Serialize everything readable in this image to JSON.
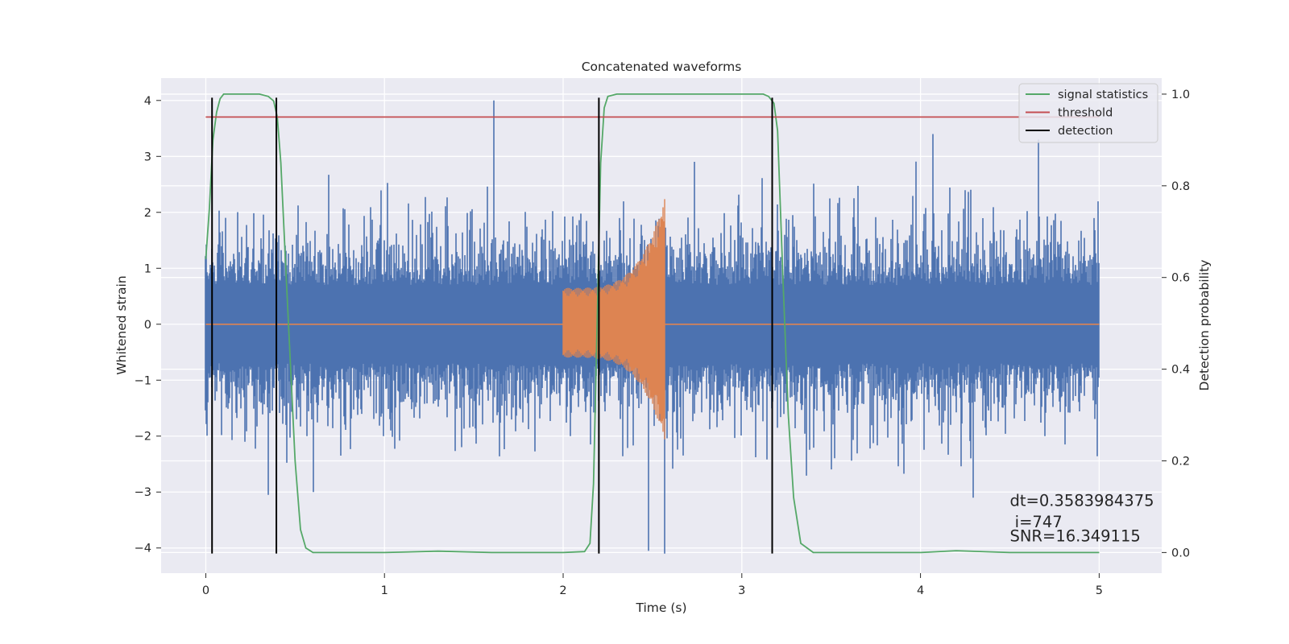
{
  "chart_data": {
    "type": "line",
    "title": "Concatenated waveforms",
    "xlabel": "Time (s)",
    "ylabel": "Whitened strain",
    "ylabel_right": "Detection probability",
    "xlim": [
      -0.25,
      5.35
    ],
    "ylim": [
      -4.45,
      4.4
    ],
    "ylim_right": [
      -0.045,
      1.035
    ],
    "x_ticks": [
      0,
      1,
      2,
      3,
      4,
      5
    ],
    "x_tick_labels": [
      "0",
      "1",
      "2",
      "3",
      "4",
      "5"
    ],
    "y_ticks": [
      -4,
      -3,
      -2,
      -1,
      0,
      1,
      2,
      3,
      4
    ],
    "y_tick_labels": [
      "−4",
      "−3",
      "−2",
      "−1",
      "0",
      "1",
      "2",
      "3",
      "4"
    ],
    "y2_ticks": [
      0.0,
      0.2,
      0.4,
      0.6,
      0.8,
      1.0
    ],
    "y2_tick_labels": [
      "0.0",
      "0.2",
      "0.4",
      "0.6",
      "0.8",
      "1.0"
    ],
    "grid": true,
    "legend_position": "top-right",
    "noise": {
      "x_range": [
        0,
        5
      ],
      "typical_peak": 1.6,
      "notable_peaks": [
        {
          "x": 1.61,
          "y": 4.0
        },
        {
          "x": 2.48,
          "y": -4.05
        },
        {
          "x": 2.57,
          "y": -4.1
        },
        {
          "x": 4.07,
          "y": 3.4
        },
        {
          "x": 4.66,
          "y": 3.3
        },
        {
          "x": 0.6,
          "y": -3.0
        },
        {
          "x": 0.35,
          "y": -3.05
        }
      ],
      "color": "#4c72b0"
    },
    "injection": {
      "x_start": 2.0,
      "x_merger": 2.57,
      "amplitude_start": 0.65,
      "amplitude_peak": 2.25,
      "color": "#dd8452"
    },
    "series": [
      {
        "name": "signal statistics",
        "axis": "right",
        "color": "#55a868",
        "x": [
          0.0,
          0.02,
          0.04,
          0.06,
          0.08,
          0.1,
          0.15,
          0.3,
          0.35,
          0.38,
          0.4,
          0.42,
          0.45,
          0.5,
          0.53,
          0.56,
          0.6,
          1.0,
          1.3,
          1.6,
          2.0,
          2.12,
          2.15,
          2.17,
          2.19,
          2.21,
          2.23,
          2.25,
          2.3,
          2.4,
          3.0,
          3.12,
          3.15,
          3.18,
          3.2,
          3.23,
          3.26,
          3.29,
          3.33,
          3.4,
          4.0,
          4.2,
          4.5,
          5.0
        ],
        "y": [
          0.64,
          0.75,
          0.9,
          0.96,
          0.99,
          1.0,
          1.0,
          1.0,
          0.995,
          0.985,
          0.95,
          0.85,
          0.6,
          0.2,
          0.05,
          0.01,
          0.0,
          0.0,
          0.003,
          0.0,
          0.0,
          0.002,
          0.02,
          0.15,
          0.5,
          0.85,
          0.97,
          0.995,
          1.0,
          1.0,
          1.0,
          1.0,
          0.995,
          0.98,
          0.92,
          0.6,
          0.3,
          0.12,
          0.02,
          0.0,
          0.0,
          0.004,
          0.0,
          0.0
        ]
      },
      {
        "name": "threshold",
        "axis": "right",
        "color": "#c44e52",
        "x": [
          0.0,
          5.0
        ],
        "y": [
          0.95,
          0.95
        ]
      },
      {
        "name": "detection",
        "axis": "left",
        "color": "#000000",
        "x": [
          0.035,
          0.395,
          2.2,
          3.17
        ],
        "y_range": [
          -4.1,
          4.05
        ]
      }
    ],
    "annotations": [
      {
        "text": "dt=0.3583984375",
        "x": 4.5,
        "y": -3.25
      },
      {
        "text": " i=747",
        "x": 4.5,
        "y": -3.63
      },
      {
        "text": "SNR=16.349115",
        "x": 4.5,
        "y": -3.88
      }
    ]
  }
}
